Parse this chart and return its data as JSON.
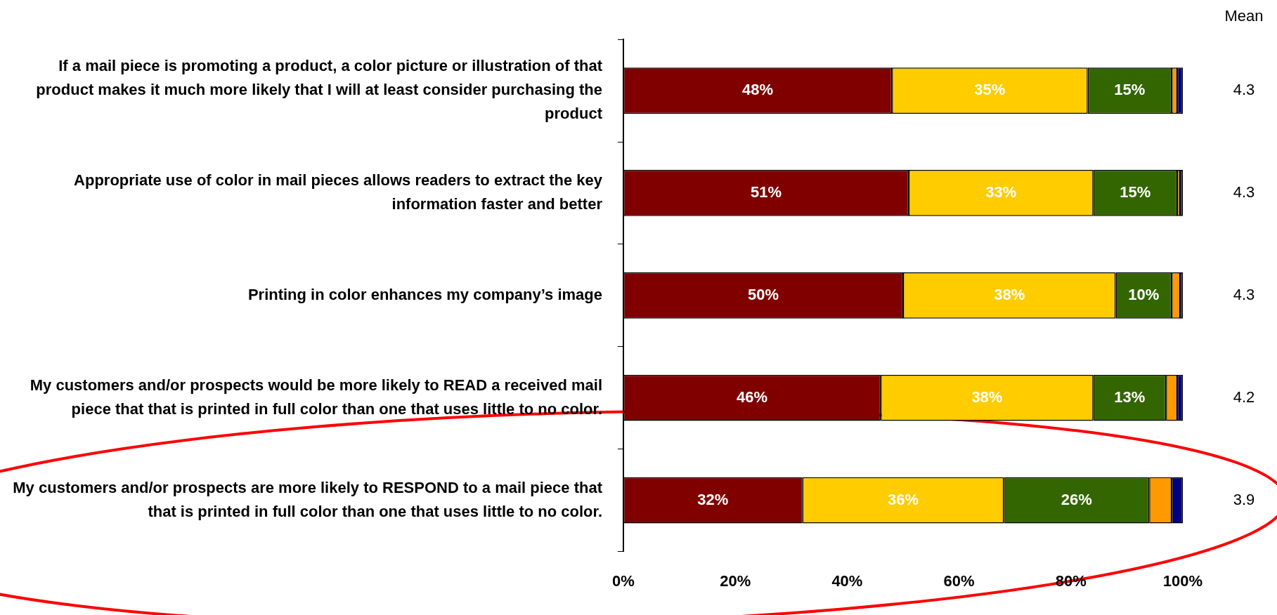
{
  "chart_data": {
    "type": "bar",
    "orientation": "horizontal",
    "stacked": true,
    "categories": [
      "If a mail piece is promoting a product, a color picture or illustration of that product makes it much more likely that I will at least consider purchasing the product",
      "Appropriate use of color in mail pieces allows readers to extract the key information faster and better",
      "Printing in color enhances my company’s image",
      "My customers and/or prospects would be more likely to READ a received mail piece that that is printed in full color than one that uses little to no color.",
      "My customers and/or prospects are more likely to RESPOND to a mail piece that that is printed in full color than one that uses little to no color."
    ],
    "series": [
      {
        "color": "#800000",
        "values": [
          48,
          51,
          50,
          46,
          32
        ],
        "value_labels": [
          "48%",
          "51%",
          "50%",
          "46%",
          "32%"
        ]
      },
      {
        "color": "#ffcc00",
        "values": [
          35,
          33,
          38,
          38,
          36
        ],
        "value_labels": [
          "35%",
          "33%",
          "38%",
          "38%",
          "36%"
        ]
      },
      {
        "color": "#336600",
        "values": [
          15,
          15,
          10,
          13,
          26
        ],
        "value_labels": [
          "15%",
          "15%",
          "10%",
          "13%",
          "26%"
        ]
      },
      {
        "color": "#ff9900",
        "values": [
          1,
          0.5,
          1.5,
          2,
          4
        ]
      },
      {
        "color": "#000080",
        "values": [
          1,
          0.5,
          0.5,
          1,
          2
        ]
      }
    ],
    "xlim": [
      0,
      100
    ],
    "xticks": [
      {
        "value": 0,
        "label": "0%"
      },
      {
        "value": 20,
        "label": "20%"
      },
      {
        "value": 40,
        "label": "40%"
      },
      {
        "value": 60,
        "label": "60%"
      },
      {
        "value": 80,
        "label": "80%"
      },
      {
        "value": 100,
        "label": "100%"
      }
    ],
    "grid": false,
    "legend": false,
    "annotations": [
      "Mean",
      "4.3",
      "4.3",
      "4.3",
      "4.2",
      "3.9"
    ]
  }
}
